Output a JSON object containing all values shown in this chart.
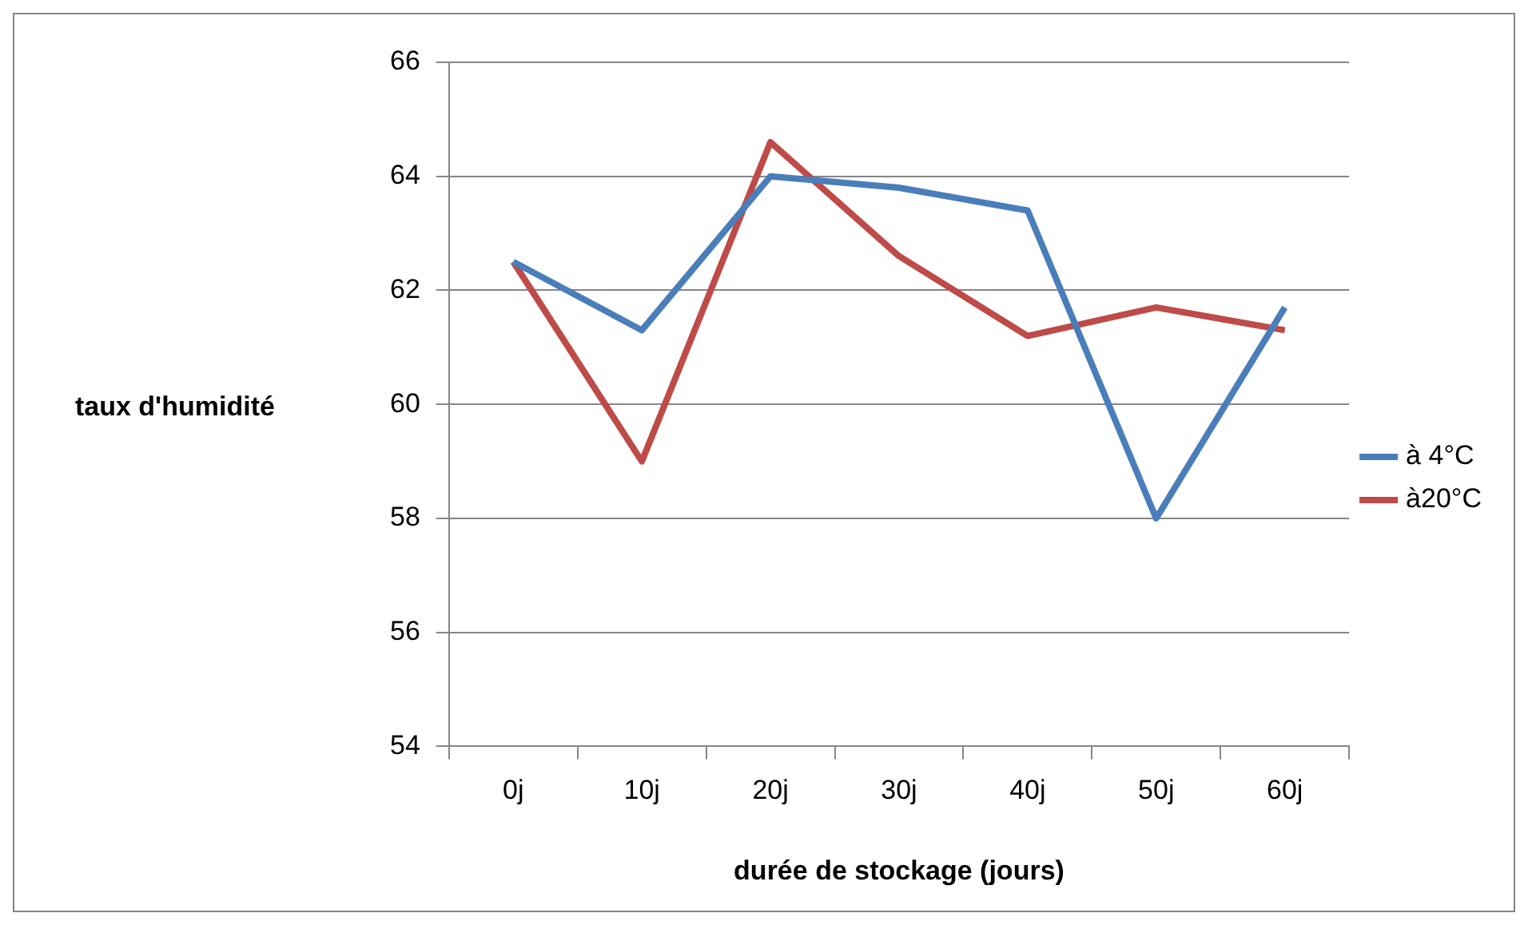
{
  "chart_data": {
    "type": "line",
    "xlabel": "durée de stockage (jours)",
    "ylabel": "taux d'humidité",
    "categories": [
      "0j",
      "10j",
      "20j",
      "30j",
      "40j",
      "50j",
      "60j"
    ],
    "series": [
      {
        "name": "à 4°C",
        "color": "#4a7ebb",
        "values": [
          62.5,
          61.3,
          64.0,
          63.8,
          63.4,
          58.0,
          61.7
        ]
      },
      {
        "name": "à20°C",
        "color": "#be4b48",
        "values": [
          62.5,
          59.0,
          64.6,
          62.6,
          61.2,
          61.7,
          61.3
        ]
      }
    ],
    "ylim": [
      54,
      66
    ],
    "yticks": [
      54,
      56,
      58,
      60,
      62,
      64,
      66
    ],
    "grid": "y",
    "legend": "right",
    "marker": "none",
    "line_style": "solid"
  }
}
